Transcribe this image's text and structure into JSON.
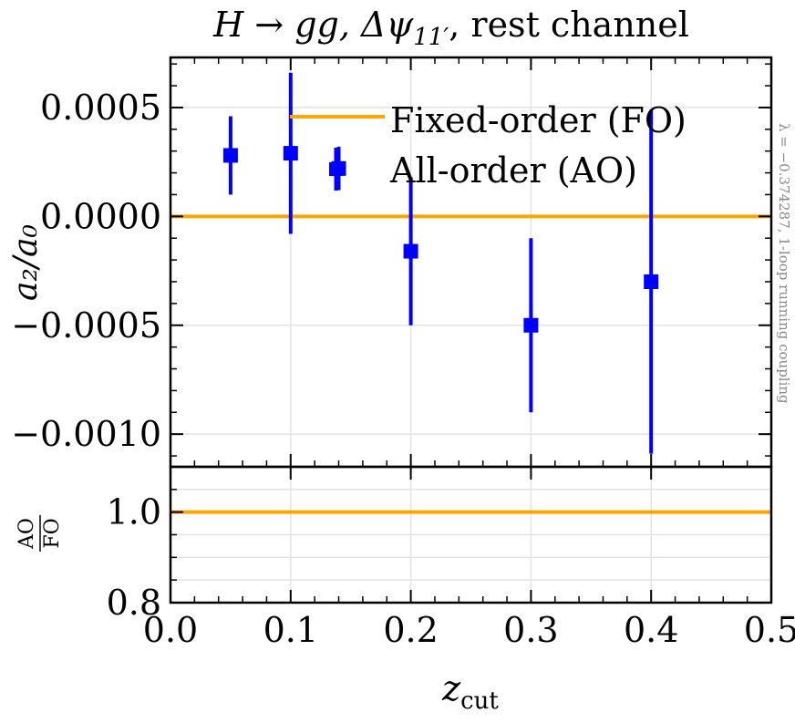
{
  "chart_data": {
    "type": "scatter",
    "title": {
      "prefix": "H → gg, Δψ",
      "subscript": "11′",
      "suffix": ", rest channel"
    },
    "xlabel": {
      "base": "z",
      "subscript": "cut"
    },
    "ylabel": "a₂/a₀",
    "ratio_ylabel": {
      "numerator": "AO",
      "denominator": "FO"
    },
    "side_annotation": "λ = −0.374287, 1-loop running coupling",
    "xlim": [
      0.0,
      0.5
    ],
    "ylim": [
      -0.00115,
      0.00073
    ],
    "ratio_ylim": [
      0.8,
      1.1
    ],
    "x_ticks": [
      "0.0",
      "0.1",
      "0.2",
      "0.3",
      "0.4",
      "0.5"
    ],
    "x_tick_values": [
      0.0,
      0.1,
      0.2,
      0.3,
      0.4,
      0.5
    ],
    "y_ticks": [
      "0.0005",
      "0.0000",
      "−0.0005",
      "−0.0010"
    ],
    "y_tick_values": [
      0.0005,
      0.0,
      -0.0005,
      -0.001
    ],
    "ratio_y_ticks": [
      "1.0",
      "0.8"
    ],
    "ratio_y_tick_values": [
      1.0,
      0.8
    ],
    "legend": {
      "position": "top-right",
      "entries": [
        "Fixed-order (FO)",
        "All-order (AO)"
      ]
    },
    "series": [
      {
        "name": "Fixed-order (FO)",
        "kind": "line",
        "color": "#ffa500",
        "y": 0.0
      },
      {
        "name": "All-order (AO)",
        "kind": "errorbar",
        "color": "#0000ff",
        "x": [
          0.05,
          0.1,
          0.14,
          0.2,
          0.3,
          0.4
        ],
        "y": [
          0.00028,
          0.00029,
          0.00022,
          -0.00016,
          -0.0005,
          -0.0003
        ],
        "yerr": [
          0.00018,
          0.00037,
          0.0001,
          0.00034,
          0.0004,
          0.00079
        ],
        "xerr": [
          0.005,
          0.005,
          0.005,
          0.005,
          0.005,
          0.005
        ]
      }
    ],
    "ratio_series": [
      {
        "name": "AO/FO",
        "color": "#ffa500",
        "y": 1.0
      }
    ]
  }
}
